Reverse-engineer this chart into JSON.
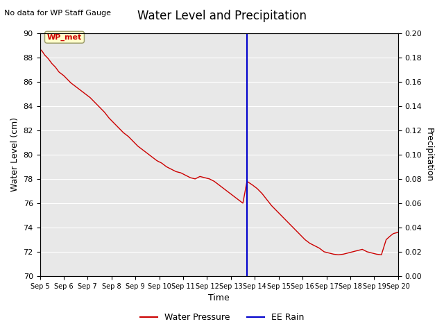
{
  "title": "Water Level and Precipitation",
  "top_left_text": "No data for WP Staff Gauge",
  "annotation_label": "WP_met",
  "xlabel": "Time",
  "ylabel_left": "Water Level (cm)",
  "ylabel_right": "Precipitation",
  "ylim_left": [
    70,
    90
  ],
  "ylim_right": [
    0.0,
    0.2
  ],
  "yticks_left": [
    70,
    72,
    74,
    76,
    78,
    80,
    82,
    84,
    86,
    88,
    90
  ],
  "yticks_right": [
    0.0,
    0.02,
    0.04,
    0.06,
    0.08,
    0.1,
    0.12,
    0.14,
    0.16,
    0.18,
    0.2
  ],
  "xticklabels": [
    "Sep 5",
    "Sep 6",
    "Sep 7",
    "Sep 8",
    "Sep 9",
    "Sep 10",
    "Sep 11",
    "Sep 12",
    "Sep 13",
    "Sep 14",
    "Sep 15",
    "Sep 16",
    "Sep 17",
    "Sep 18",
    "Sep 19",
    "Sep 20"
  ],
  "vline_x": 8.67,
  "vline_color": "#0000CC",
  "line_color": "#CC0000",
  "background_color": "#E8E8E8",
  "legend_entries": [
    "Water Pressure",
    "EE Rain"
  ],
  "legend_colors": [
    "#CC0000",
    "#0000CC"
  ],
  "water_level_data_x": [
    0,
    0.1,
    0.2,
    0.35,
    0.5,
    0.65,
    0.8,
    1.0,
    1.15,
    1.3,
    1.5,
    1.7,
    1.9,
    2.1,
    2.3,
    2.5,
    2.7,
    2.9,
    3.1,
    3.3,
    3.5,
    3.7,
    3.9,
    4.1,
    4.3,
    4.5,
    4.7,
    4.9,
    5.1,
    5.3,
    5.5,
    5.7,
    5.9,
    6.1,
    6.3,
    6.5,
    6.7,
    6.9,
    7.1,
    7.3,
    7.5,
    7.7,
    7.9,
    8.1,
    8.3,
    8.5,
    8.67,
    8.9,
    9.1,
    9.3,
    9.5,
    9.7,
    9.9,
    10.1,
    10.3,
    10.5,
    10.7,
    10.9,
    11.1,
    11.3,
    11.5,
    11.7,
    11.9,
    12.1,
    12.3,
    12.5,
    12.7,
    12.9,
    13.1,
    13.3,
    13.5,
    13.7,
    13.9,
    14.1,
    14.3,
    14.5,
    14.67,
    14.8,
    15.0
  ],
  "water_level_data_y": [
    88.7,
    88.5,
    88.2,
    87.9,
    87.5,
    87.2,
    86.8,
    86.5,
    86.2,
    85.9,
    85.6,
    85.3,
    85.0,
    84.7,
    84.3,
    83.9,
    83.5,
    83.0,
    82.6,
    82.2,
    81.8,
    81.5,
    81.1,
    80.7,
    80.4,
    80.1,
    79.8,
    79.5,
    79.3,
    79.0,
    78.8,
    78.6,
    78.5,
    78.3,
    78.1,
    78.0,
    78.2,
    78.1,
    78.0,
    77.8,
    77.5,
    77.2,
    76.9,
    76.6,
    76.3,
    76.0,
    77.8,
    77.5,
    77.2,
    76.8,
    76.3,
    75.8,
    75.4,
    75.0,
    74.6,
    74.2,
    73.8,
    73.4,
    73.0,
    72.7,
    72.5,
    72.3,
    72.0,
    71.9,
    71.8,
    71.75,
    71.8,
    71.9,
    72.0,
    72.1,
    72.2,
    72.0,
    71.9,
    71.8,
    71.75,
    73.0,
    73.3,
    73.5,
    73.6
  ]
}
